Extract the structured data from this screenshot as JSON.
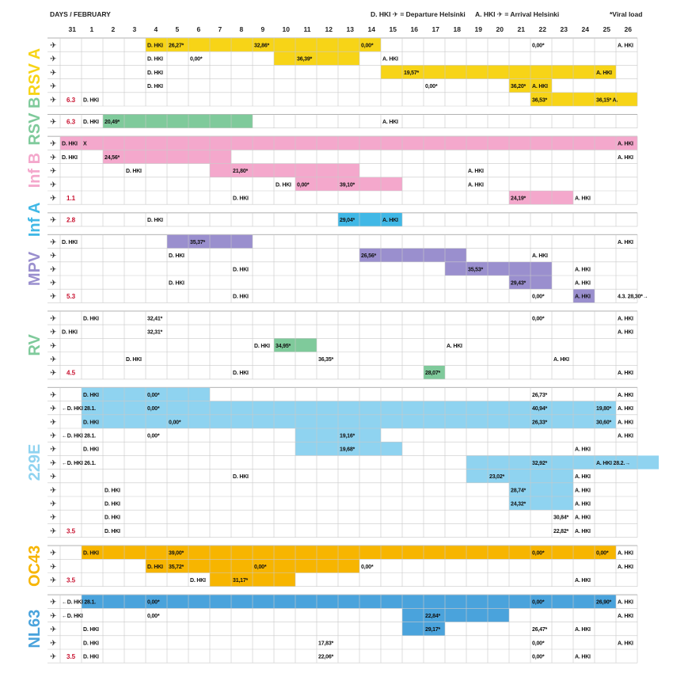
{
  "header": {
    "days_label": "DAYS / FEBRUARY",
    "legend_departure": "D. HKI ✈ = Departure Helsinki",
    "legend_arrival": "A. HKI ✈ = Arrival Helsinki",
    "legend_viral": "*Viral load"
  },
  "days": [
    "31",
    "1",
    "2",
    "3",
    "4",
    "5",
    "6",
    "7",
    "8",
    "9",
    "10",
    "11",
    "12",
    "13",
    "14",
    "15",
    "16",
    "17",
    "18",
    "19",
    "20",
    "21",
    "22",
    "23",
    "24",
    "25",
    "26"
  ],
  "colors": {
    "RSV A": "#f7d417",
    "RSV B": "#f7d417",
    "RSV B row": "#7fca9b",
    "Inf B": "#f4a8cc",
    "Inf A": "#40b8e6",
    "MPV": "#9a8fce",
    "RV": "#7fca9b",
    "229E": "#8fd3f0",
    "OC43": "#f7b500",
    "NL63": "#4aa3dc"
  },
  "groups": [
    {
      "name": "RSV A",
      "label_color": "#f7d417",
      "bar_color": "#f7d417",
      "rows": [
        {
          "bars": [
            [
              4,
              14
            ]
          ],
          "cells": [
            [
              4,
              "D. HKI"
            ],
            [
              5,
              "26,27*"
            ],
            [
              9,
              "32,86*"
            ],
            [
              14,
              "0,00*"
            ],
            [
              22,
              "0,00*"
            ],
            [
              26,
              "A. HKI"
            ]
          ]
        },
        {
          "bars": [
            [
              10,
              13
            ]
          ],
          "cells": [
            [
              4,
              "D. HKI"
            ],
            [
              6,
              "0,00*"
            ],
            [
              11,
              "36,39*"
            ],
            [
              15,
              "A. HKI"
            ]
          ]
        },
        {
          "bars": [
            [
              15,
              25
            ]
          ],
          "cells": [
            [
              4,
              "D. HKI"
            ],
            [
              16,
              "19,57*"
            ],
            [
              25,
              "A. HKI"
            ]
          ]
        },
        {
          "bars": [
            [
              21,
              22
            ]
          ],
          "cells": [
            [
              4,
              "D. HKI"
            ],
            [
              17,
              "0,00*"
            ],
            [
              21,
              "36,20*"
            ],
            [
              22,
              "A. HKI"
            ]
          ]
        },
        {
          "red": "6.3",
          "bars": [
            [
              22,
              26
            ]
          ],
          "cells": [
            [
              1,
              "D. HKI"
            ],
            [
              22,
              "36,53*"
            ],
            [
              25,
              "36,15* A."
            ]
          ]
        }
      ]
    },
    {
      "name": "RSV B",
      "label_color": "#7fca9b",
      "bar_color": "#7fca9b",
      "rows": [
        {
          "red": "6.3",
          "bars": [
            [
              2,
              8
            ]
          ],
          "cells": [
            [
              1,
              "D. HKI"
            ],
            [
              2,
              "20,49*"
            ],
            [
              15,
              "A. HKI"
            ]
          ]
        }
      ]
    },
    {
      "name": "Inf B",
      "label_color": "#f4a8cc",
      "bar_color": "#f4a8cc",
      "rows": [
        {
          "bars": [
            [
              0,
              26
            ]
          ],
          "cells": [
            [
              0,
              "D. HKI"
            ],
            [
              1,
              "X"
            ],
            [
              26,
              "A. HKI"
            ]
          ]
        },
        {
          "bars": [
            [
              2,
              7
            ]
          ],
          "cells": [
            [
              0,
              "D. HKI"
            ],
            [
              2,
              "24,56*"
            ],
            [
              26,
              "A. HKI"
            ]
          ]
        },
        {
          "bars": [
            [
              7,
              13
            ]
          ],
          "cells": [
            [
              3,
              "D. HKI"
            ],
            [
              8,
              "21,80*"
            ],
            [
              19,
              "A. HKI"
            ]
          ]
        },
        {
          "bars": [
            [
              11,
              15
            ]
          ],
          "cells": [
            [
              10,
              "D. HKI"
            ],
            [
              11,
              "0,00*"
            ],
            [
              13,
              "39,10*"
            ],
            [
              19,
              "A. HKI"
            ]
          ]
        },
        {
          "red": "1.1",
          "bars": [
            [
              21,
              23
            ]
          ],
          "cells": [
            [
              8,
              "D. HKI"
            ],
            [
              21,
              "24,19*"
            ],
            [
              24,
              "A. HKI"
            ]
          ]
        }
      ]
    },
    {
      "name": "Inf A",
      "label_color": "#40b8e6",
      "bar_color": "#40b8e6",
      "rows": [
        {
          "red": "2.8",
          "bars": [
            [
              13,
              15
            ]
          ],
          "cells": [
            [
              4,
              "D. HKI"
            ],
            [
              13,
              "29,04*"
            ],
            [
              15,
              "A. HKI"
            ]
          ]
        }
      ]
    },
    {
      "name": "MPV",
      "label_color": "#9a8fce",
      "bar_color": "#9a8fce",
      "rows": [
        {
          "bars": [
            [
              5,
              8
            ]
          ],
          "cells": [
            [
              0,
              "D. HKI"
            ],
            [
              6,
              "35,37*"
            ],
            [
              26,
              "A. HKI"
            ]
          ]
        },
        {
          "bars": [
            [
              14,
              18
            ]
          ],
          "cells": [
            [
              5,
              "D. HKI"
            ],
            [
              14,
              "26,56*"
            ],
            [
              22,
              "A. HKI"
            ]
          ]
        },
        {
          "bars": [
            [
              18,
              22
            ]
          ],
          "cells": [
            [
              8,
              "D. HKI"
            ],
            [
              19,
              "35,53*"
            ],
            [
              24,
              "A. HKI"
            ]
          ]
        },
        {
          "bars": [
            [
              21,
              22
            ]
          ],
          "cells": [
            [
              5,
              "D. HKI"
            ],
            [
              21,
              "29,43*"
            ],
            [
              24,
              "A. HKI"
            ]
          ]
        },
        {
          "red": "5.3",
          "bars": [
            [
              24,
              24
            ]
          ],
          "cells": [
            [
              8,
              "D. HKI"
            ],
            [
              22,
              "0,00*"
            ],
            [
              24,
              "A. HKI"
            ],
            [
              26,
              "4.3. 28,30*→"
            ]
          ]
        }
      ]
    },
    {
      "name": "RV",
      "label_color": "#7fca9b",
      "bar_color": "#7fca9b",
      "rows": [
        {
          "bars": [],
          "cells": [
            [
              1,
              "D. HKI"
            ],
            [
              4,
              "32,41*"
            ],
            [
              22,
              "0,00*"
            ],
            [
              26,
              "A. HKI"
            ]
          ]
        },
        {
          "bars": [],
          "cells": [
            [
              0,
              "D. HKI"
            ],
            [
              4,
              "32,31*"
            ],
            [
              26,
              "A. HKI"
            ]
          ]
        },
        {
          "bars": [
            [
              10,
              11
            ]
          ],
          "cells": [
            [
              9,
              "D. HKI"
            ],
            [
              10,
              "34,95*"
            ],
            [
              18,
              "A. HKI"
            ]
          ]
        },
        {
          "bars": [],
          "cells": [
            [
              3,
              "D. HKI"
            ],
            [
              12,
              "36,35*"
            ],
            [
              23,
              "A. HKI"
            ]
          ]
        },
        {
          "red": "4.5",
          "bars": [
            [
              17,
              17
            ]
          ],
          "cells": [
            [
              8,
              "D. HKI"
            ],
            [
              17,
              "28,07*"
            ],
            [
              26,
              "A. HKI"
            ]
          ]
        }
      ]
    },
    {
      "name": "229E",
      "label_color": "#8fd3f0",
      "bar_color": "#8fd3f0",
      "rows": [
        {
          "bars": [
            [
              1,
              6
            ]
          ],
          "cells": [
            [
              1,
              "D. HKI"
            ],
            [
              4,
              "0,00*"
            ],
            [
              22,
              "26,73*"
            ],
            [
              26,
              "A. HKI"
            ]
          ]
        },
        {
          "bars": [
            [
              1,
              25
            ]
          ],
          "cells": [
            [
              0,
              "←D. HKI 28.1."
            ],
            [
              4,
              "0,00*"
            ],
            [
              22,
              "40,94*"
            ],
            [
              25,
              "19,80*"
            ],
            [
              26,
              "A. HKI"
            ]
          ]
        },
        {
          "bars": [
            [
              1,
              25
            ]
          ],
          "cells": [
            [
              1,
              "D. HKI"
            ],
            [
              5,
              "0,00*"
            ],
            [
              22,
              "26,33*"
            ],
            [
              25,
              "30,60*"
            ],
            [
              26,
              "A. HKI"
            ]
          ]
        },
        {
          "bars": [
            [
              11,
              14
            ]
          ],
          "cells": [
            [
              0,
              "←D. HKI 28.1."
            ],
            [
              4,
              "0,00*"
            ],
            [
              13,
              "19,16*"
            ],
            [
              26,
              "A. HKI"
            ]
          ]
        },
        {
          "bars": [
            [
              11,
              15
            ]
          ],
          "cells": [
            [
              1,
              "D. HKI"
            ],
            [
              13,
              "19,68*"
            ],
            [
              24,
              "A. HKI"
            ]
          ]
        },
        {
          "bars": [
            [
              19,
              27
            ]
          ],
          "cells": [
            [
              0,
              "←D. HKI 26.1."
            ],
            [
              22,
              "32,92*"
            ],
            [
              25,
              "A. HKI 28.2.→"
            ]
          ]
        },
        {
          "bars": [
            [
              19,
              23
            ]
          ],
          "cells": [
            [
              8,
              "D. HKI"
            ],
            [
              20,
              "23,02*"
            ],
            [
              24,
              "A. HKI"
            ]
          ]
        },
        {
          "bars": [
            [
              21,
              23
            ]
          ],
          "cells": [
            [
              2,
              "D. HKI"
            ],
            [
              21,
              "28,74*"
            ],
            [
              24,
              "A. HKI"
            ]
          ]
        },
        {
          "bars": [
            [
              21,
              23
            ]
          ],
          "cells": [
            [
              2,
              "D. HKI"
            ],
            [
              21,
              "24,32*"
            ],
            [
              24,
              "A. HKI"
            ]
          ]
        },
        {
          "bars": [],
          "cells": [
            [
              2,
              "D. HKI"
            ],
            [
              23,
              "30,84*"
            ],
            [
              24,
              "A. HKI"
            ]
          ]
        },
        {
          "red": "3.5",
          "bars": [],
          "cells": [
            [
              2,
              "D. HKI"
            ],
            [
              23,
              "22,82*"
            ],
            [
              24,
              "A. HKI"
            ]
          ]
        }
      ]
    },
    {
      "name": "OC43",
      "label_color": "#f7b500",
      "bar_color": "#f7b500",
      "rows": [
        {
          "bars": [
            [
              1,
              25
            ]
          ],
          "cells": [
            [
              1,
              "D. HKI"
            ],
            [
              5,
              "39,00*"
            ],
            [
              22,
              "0,00*"
            ],
            [
              25,
              "0,00*"
            ],
            [
              26,
              "A. HKI"
            ]
          ]
        },
        {
          "bars": [
            [
              4,
              13
            ]
          ],
          "cells": [
            [
              4,
              "D. HKI"
            ],
            [
              5,
              "35,72*"
            ],
            [
              9,
              "0,00*"
            ],
            [
              14,
              "0,00*"
            ],
            [
              26,
              "A. HKI"
            ]
          ]
        },
        {
          "red": "3.5",
          "bars": [
            [
              7,
              10
            ]
          ],
          "cells": [
            [
              6,
              "D. HKI"
            ],
            [
              8,
              "31,17*"
            ],
            [
              24,
              "A. HKI"
            ]
          ]
        }
      ]
    },
    {
      "name": "NL63",
      "label_color": "#4aa3dc",
      "bar_color": "#4aa3dc",
      "rows": [
        {
          "bars": [
            [
              1,
              25
            ]
          ],
          "cells": [
            [
              0,
              "←D. HKI 28.1."
            ],
            [
              4,
              "0,00*"
            ],
            [
              22,
              "0,00*"
            ],
            [
              25,
              "26,90*"
            ],
            [
              26,
              "A. HKI"
            ]
          ]
        },
        {
          "bars": [
            [
              16,
              20
            ]
          ],
          "cells": [
            [
              0,
              "←D. HKI"
            ],
            [
              4,
              "0,00*"
            ],
            [
              17,
              "22,84*"
            ],
            [
              26,
              "A. HKI"
            ]
          ]
        },
        {
          "bars": [
            [
              16,
              17
            ]
          ],
          "cells": [
            [
              1,
              "D. HKI"
            ],
            [
              17,
              "29,17*"
            ],
            [
              22,
              "26,47*"
            ],
            [
              24,
              "A. HKI"
            ]
          ]
        },
        {
          "bars": [],
          "cells": [
            [
              1,
              "D. HKI"
            ],
            [
              12,
              "17,83*"
            ],
            [
              22,
              "0,00*"
            ],
            [
              26,
              "A. HKI"
            ]
          ]
        },
        {
          "red": "3.5",
          "bars": [],
          "cells": [
            [
              1,
              "D. HKI"
            ],
            [
              12,
              "22,06*"
            ],
            [
              22,
              "0,00*"
            ],
            [
              24,
              "A. HKI"
            ]
          ]
        }
      ]
    }
  ]
}
